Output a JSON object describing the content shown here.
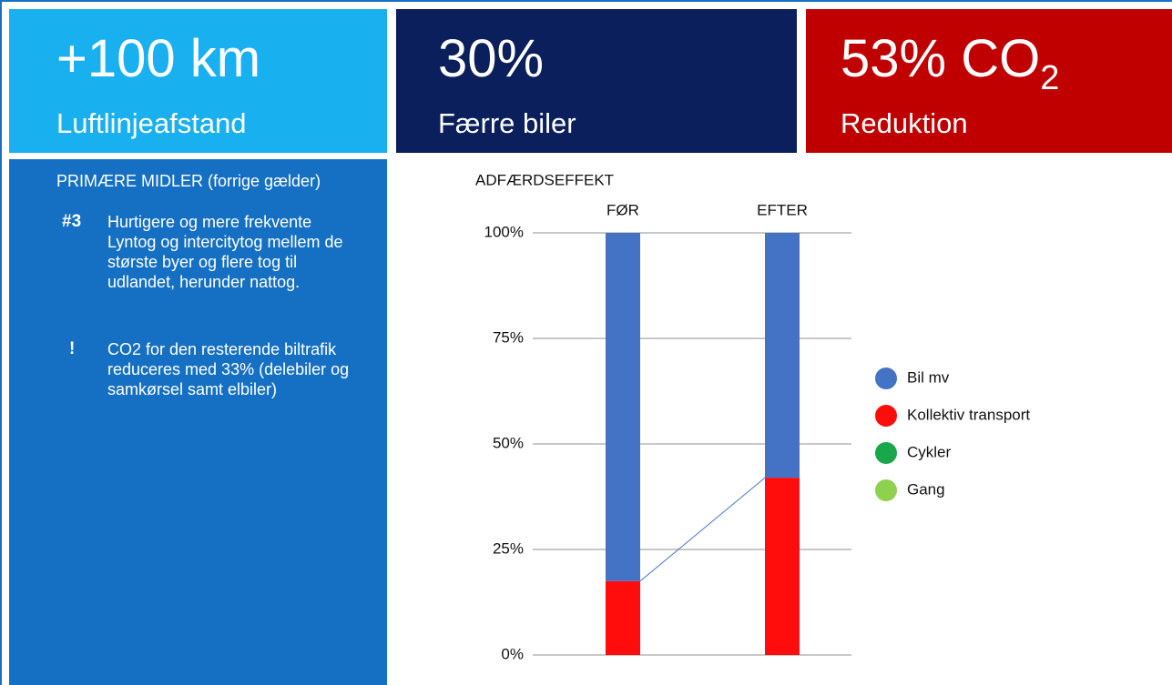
{
  "tiles": [
    {
      "value": "+100 km",
      "label": "Luftlinjeafstand"
    },
    {
      "value": "30%",
      "label": "Færre biler"
    },
    {
      "value": "53% CO",
      "value_subscript": "2",
      "label": "Reduktion"
    }
  ],
  "sidebar": {
    "heading": "PRIMÆRE MIDLER (forrige gælder)",
    "items": [
      {
        "marker": "#3",
        "text": "Hurtigere og mere frekvente Lyntog og intercitytog mellem de største byer og flere tog til udlandet, herunder nattog."
      },
      {
        "marker": "!",
        "text": "CO2 for den resterende biltrafik reduceres med 33% (delebiler og samkørsel samt elbiler)"
      }
    ]
  },
  "chart_data": {
    "type": "stacked_bar",
    "title": "ADFÆRDSEFFEKT",
    "categories": [
      "FØR",
      "EFTER"
    ],
    "series": [
      {
        "name": "Bil mv",
        "color": "#4472c4",
        "values": [
          82.5,
          58
        ]
      },
      {
        "name": "Kollektiv transport",
        "color": "#ff0d0d",
        "values": [
          17.5,
          42
        ]
      },
      {
        "name": "Cykler",
        "color": "#1aa64b",
        "values": [
          0,
          0
        ]
      },
      {
        "name": "Gang",
        "color": "#8fd14f",
        "values": [
          0,
          0
        ]
      }
    ],
    "ylim": [
      0,
      100
    ],
    "yticks": [
      {
        "value": 0,
        "label": "0%"
      },
      {
        "value": 25,
        "label": "25%"
      },
      {
        "value": 50,
        "label": "50%"
      },
      {
        "value": 75,
        "label": "75%"
      },
      {
        "value": 100,
        "label": "100%"
      }
    ],
    "grid": true,
    "legend": "right"
  }
}
